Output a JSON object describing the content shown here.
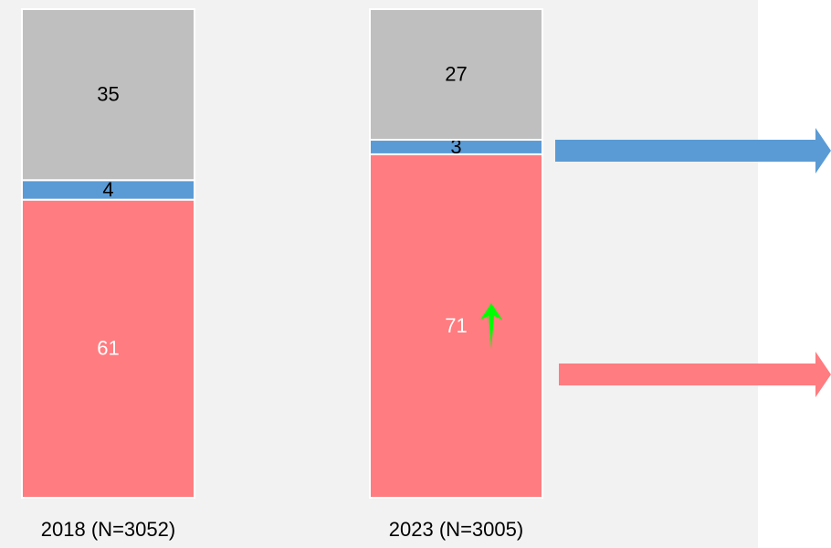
{
  "chart_data": {
    "type": "stacked-bar",
    "categories": [
      "2018 (N=3052)",
      "2023 (N=3005)"
    ],
    "series": [
      {
        "color": "#ff7c80",
        "label_color": "#ffffff",
        "values": [
          61,
          71
        ]
      },
      {
        "color": "#5b9bd5",
        "label_color": "#000000",
        "values": [
          4,
          3
        ]
      },
      {
        "color": "#bfbfbf",
        "label_color": "#000000",
        "values": [
          35,
          27
        ]
      }
    ]
  }
}
